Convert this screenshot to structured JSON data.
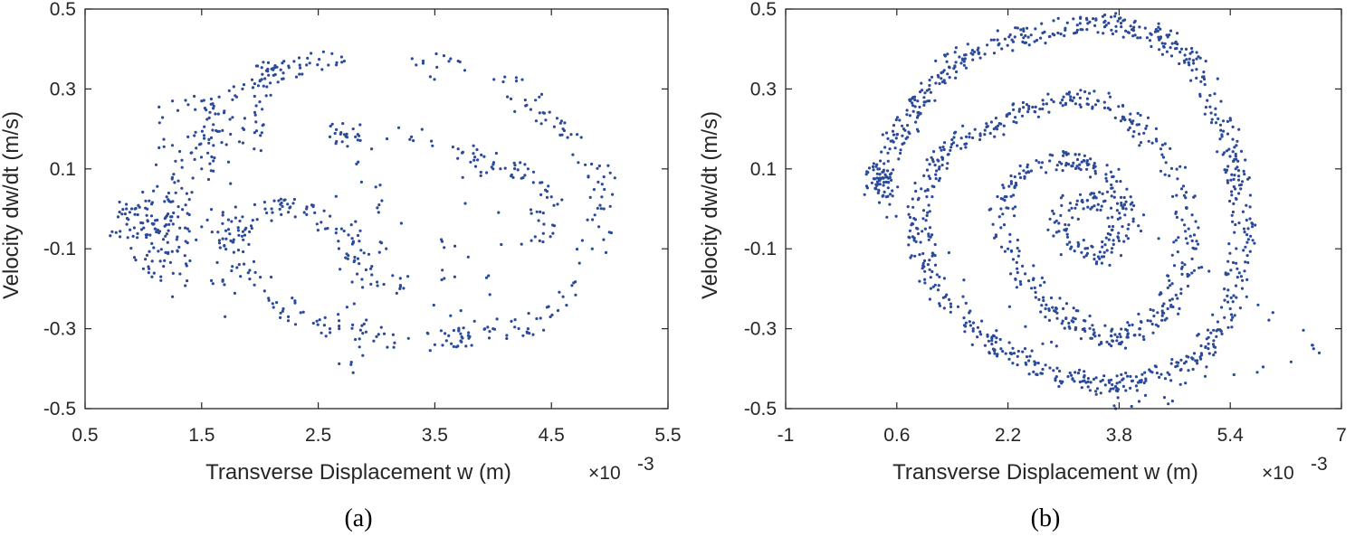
{
  "chart_data": [
    {
      "type": "scatter",
      "panel_label": "(a)",
      "title": "",
      "xlabel": "Transverse  Displacement  w  (m)",
      "ylabel": "Velocity  dw/dt  (m/s)",
      "x_exponent_base": "×10",
      "x_exponent_power": "-3",
      "xlim": [
        0.5,
        5.5
      ],
      "ylim": [
        -0.5,
        0.5
      ],
      "xticks": [
        0.5,
        1.5,
        2.5,
        3.5,
        4.5,
        5.5
      ],
      "xtick_labels": [
        "0.5",
        "1.5",
        "2.5",
        "3.5",
        "4.5",
        "5.5"
      ],
      "yticks": [
        -0.5,
        -0.3,
        -0.1,
        0.1,
        0.3,
        0.5
      ],
      "ytick_labels": [
        "-0.5",
        "-0.3",
        "-0.1",
        "0.1",
        "0.3",
        "0.5"
      ],
      "grid": false,
      "marker_color": "#2b4a9a",
      "points": [
        [
          0.8,
          -0.07
        ],
        [
          0.9,
          0.0
        ],
        [
          1.0,
          -0.15
        ],
        [
          1.05,
          0.02
        ],
        [
          1.1,
          -0.05
        ],
        [
          1.15,
          -0.17
        ],
        [
          1.2,
          0.03
        ],
        [
          1.25,
          0.27
        ],
        [
          1.25,
          -0.22
        ],
        [
          1.3,
          0.07
        ],
        [
          1.4,
          -0.13
        ],
        [
          1.5,
          0.1
        ],
        [
          1.5,
          0.27
        ],
        [
          1.6,
          0.12
        ],
        [
          1.65,
          0.28
        ],
        [
          1.7,
          -0.27
        ],
        [
          1.8,
          0.28
        ],
        [
          1.85,
          0.3
        ],
        [
          1.95,
          0.15
        ],
        [
          2.0,
          0.32
        ],
        [
          2.1,
          0.35
        ],
        [
          2.2,
          0.34
        ],
        [
          2.4,
          0.36
        ],
        [
          2.7,
          0.38
        ],
        [
          2.8,
          -0.41
        ],
        [
          3.4,
          0.37
        ],
        [
          3.7,
          0.37
        ],
        [
          3.6,
          -0.33
        ],
        [
          3.8,
          -0.32
        ],
        [
          4.1,
          0.33
        ],
        [
          4.4,
          0.24
        ],
        [
          4.6,
          0.2
        ],
        [
          4.95,
          0.08
        ],
        [
          4.95,
          0.0
        ],
        [
          4.85,
          -0.1
        ],
        [
          4.6,
          -0.22
        ],
        [
          4.3,
          -0.3
        ],
        [
          4.0,
          -0.3
        ],
        [
          3.5,
          -0.34
        ],
        [
          3.0,
          -0.32
        ],
        [
          2.6,
          -0.3
        ],
        [
          2.2,
          -0.25
        ],
        [
          1.9,
          -0.16
        ],
        [
          1.75,
          -0.08
        ],
        [
          1.85,
          -0.02
        ],
        [
          2.1,
          0.0
        ],
        [
          2.4,
          0.0
        ],
        [
          2.7,
          -0.05
        ],
        [
          2.95,
          -0.15
        ],
        [
          3.2,
          -0.2
        ],
        [
          2.8,
          0.2
        ],
        [
          2.6,
          0.18
        ],
        [
          3.3,
          0.18
        ],
        [
          3.7,
          0.15
        ],
        [
          4.0,
          0.1
        ],
        [
          4.3,
          0.1
        ],
        [
          4.5,
          0.03
        ],
        [
          4.4,
          -0.08
        ]
      ]
    },
    {
      "type": "scatter",
      "panel_label": "(b)",
      "title": "",
      "xlabel": "Transverse  Displacement  w  (m)",
      "ylabel": "Velocity  dw/dt  (m/s)",
      "x_exponent_base": "×10",
      "x_exponent_power": "-3",
      "xlim": [
        -1,
        7
      ],
      "ylim": [
        -0.5,
        0.5
      ],
      "xticks": [
        -1,
        0.6,
        2.2,
        3.8,
        5.4,
        7
      ],
      "xtick_labels": [
        "-1",
        "0.6",
        "2.2",
        "3.8",
        "5.4",
        "7"
      ],
      "yticks": [
        -0.5,
        -0.3,
        -0.1,
        0.1,
        0.3,
        0.5
      ],
      "ytick_labels": [
        "-0.5",
        "-0.3",
        "-0.1",
        "0.1",
        "0.3",
        "0.5"
      ],
      "grid": false,
      "marker_color": "#2b4a9a",
      "points": [
        [
          0.3,
          0.05
        ],
        [
          0.35,
          0.1
        ],
        [
          0.45,
          0.03
        ],
        [
          0.5,
          0.15
        ],
        [
          0.7,
          0.2
        ],
        [
          0.9,
          0.27
        ],
        [
          1.2,
          0.33
        ],
        [
          1.5,
          0.38
        ],
        [
          1.9,
          0.41
        ],
        [
          2.3,
          0.43
        ],
        [
          2.7,
          0.44
        ],
        [
          3.2,
          0.46
        ],
        [
          3.6,
          0.47
        ],
        [
          4.0,
          0.45
        ],
        [
          4.4,
          0.43
        ],
        [
          4.7,
          0.4
        ],
        [
          5.0,
          0.33
        ],
        [
          5.3,
          0.22
        ],
        [
          5.45,
          0.12
        ],
        [
          5.55,
          0.05
        ],
        [
          5.6,
          -0.05
        ],
        [
          5.5,
          -0.15
        ],
        [
          5.4,
          -0.25
        ],
        [
          5.2,
          -0.32
        ],
        [
          4.9,
          -0.38
        ],
        [
          4.5,
          -0.41
        ],
        [
          4.1,
          -0.43
        ],
        [
          3.7,
          -0.44
        ],
        [
          3.3,
          -0.43
        ],
        [
          2.9,
          -0.42
        ],
        [
          2.5,
          -0.38
        ],
        [
          2.1,
          -0.35
        ],
        [
          1.7,
          -0.3
        ],
        [
          1.3,
          -0.22
        ],
        [
          1.0,
          -0.13
        ],
        [
          0.9,
          -0.05
        ],
        [
          0.95,
          0.05
        ],
        [
          1.2,
          0.12
        ],
        [
          1.6,
          0.18
        ],
        [
          2.0,
          0.2
        ],
        [
          2.5,
          0.25
        ],
        [
          3.0,
          0.28
        ],
        [
          3.5,
          0.27
        ],
        [
          4.0,
          0.22
        ],
        [
          4.4,
          0.15
        ],
        [
          4.7,
          0.05
        ],
        [
          4.8,
          -0.05
        ],
        [
          4.7,
          -0.15
        ],
        [
          4.5,
          -0.25
        ],
        [
          4.1,
          -0.3
        ],
        [
          3.7,
          -0.33
        ],
        [
          3.3,
          -0.3
        ],
        [
          2.9,
          -0.25
        ],
        [
          2.5,
          -0.18
        ],
        [
          2.2,
          -0.1
        ],
        [
          2.1,
          0.0
        ],
        [
          2.3,
          0.08
        ],
        [
          2.8,
          0.12
        ],
        [
          3.3,
          0.12
        ],
        [
          3.7,
          0.08
        ],
        [
          3.9,
          0.0
        ],
        [
          3.8,
          -0.08
        ],
        [
          3.5,
          -0.12
        ],
        [
          3.1,
          -0.1
        ],
        [
          2.9,
          -0.03
        ],
        [
          3.2,
          0.02
        ],
        [
          3.6,
          0.02
        ],
        [
          6.6,
          -0.35
        ],
        [
          3.75,
          -0.5
        ]
      ]
    }
  ]
}
